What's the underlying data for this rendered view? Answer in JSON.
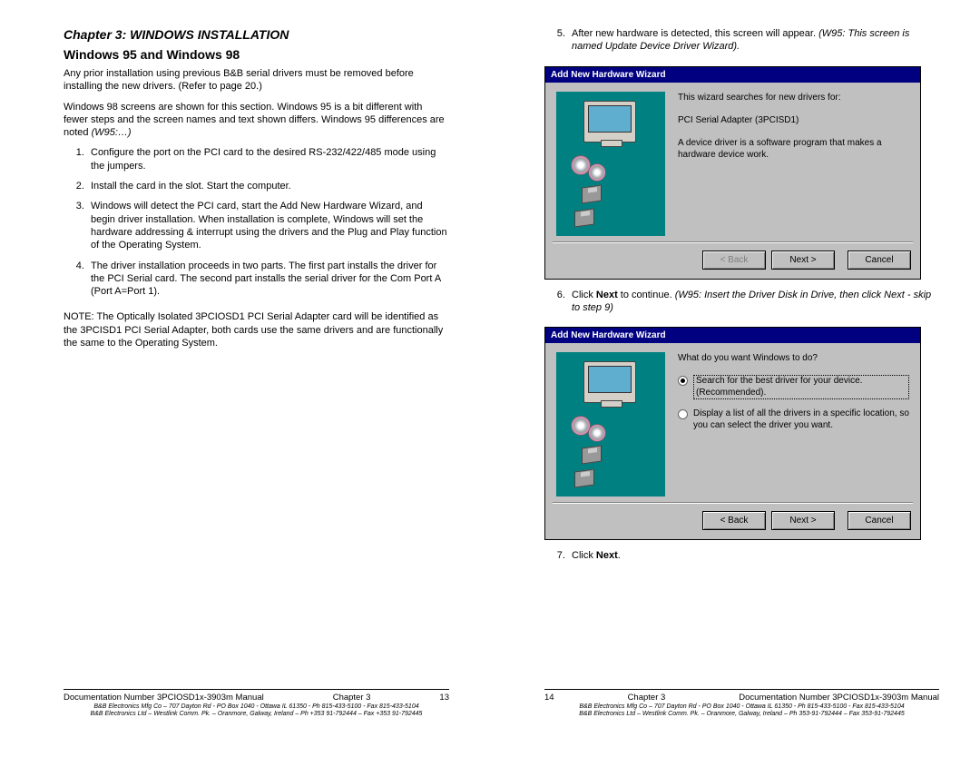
{
  "left": {
    "chapter": "Chapter 3: WINDOWS INSTALLATION",
    "heading": "Windows 95 and Windows 98",
    "p1": "Any prior installation using previous B&B serial drivers must be removed before installing the new drivers. (Refer to page 20.)",
    "p2_a": "Windows 98 screens are shown for this section. Windows 95 is a bit different with fewer steps and the screen names and text shown differs. Windows 95 differences are noted ",
    "p2_b": "(W95:…)",
    "li1": "Configure the port on the PCI card to the desired RS-232/422/485 mode using the jumpers.",
    "li2": "Install the card in the slot. Start the computer.",
    "li3": "Windows will detect the PCI card, start the Add New Hardware Wizard, and begin driver installation. When installation is complete, Windows will set the hardware addressing & interrupt using the drivers and the Plug and Play function of the Operating System.",
    "li4": "The driver installation proceeds in two parts. The first part installs the driver for the PCI Serial card. The second part installs the serial driver for the Com Port A (Port A=Port 1).",
    "note": "NOTE: The Optically Isolated 3PCIOSD1 PCI Serial Adapter card will be identified as the 3PCISD1 PCI Serial Adapter, both cards use the same drivers and are functionally the same to the Operating System.",
    "footer": {
      "doc": "Documentation Number 3PCIOSD1x-3903m Manual",
      "chap": "Chapter 3",
      "page": "13",
      "tiny1": "B&B Electronics Mfg Co – 707 Dayton Rd - PO Box 1040 - Ottawa IL 61350 - Ph 815-433-5100 - Fax 815-433-5104",
      "tiny2": "B&B Electronics Ltd – Westlink Comm. Pk. – Oranmore, Galway, Ireland – Ph +353 91-792444 – Fax +353 91-792445"
    }
  },
  "right": {
    "li5_a": "After new hardware is detected, this screen will appear. ",
    "li5_b": "(W95: This screen is named Update Device Driver Wizard).",
    "li6_a": "Click ",
    "li6_b": "Next",
    "li6_c": " to continue. ",
    "li6_d": "(W95: Insert the Driver Disk in Drive, then click Next - skip to step 9)",
    "li7_a": "Click ",
    "li7_b": "Next",
    "li7_c": ".",
    "wizard1": {
      "title": "Add New Hardware Wizard",
      "line1": "This wizard searches for new drivers for:",
      "line2": "PCI Serial Adapter (3PCISD1)",
      "line3": "A device driver is a software program that makes a hardware device work.",
      "back": "< Back",
      "next": "Next >",
      "cancel": "Cancel"
    },
    "wizard2": {
      "title": "Add New Hardware Wizard",
      "prompt": "What do you want Windows to do?",
      "opt1": "Search for the best driver for your device. (Recommended).",
      "opt2": "Display a list of all the drivers in a specific location, so you can select the driver you want.",
      "back": "< Back",
      "next": "Next >",
      "cancel": "Cancel"
    },
    "footer": {
      "page": "14",
      "chap": "Chapter 3",
      "doc": "Documentation Number 3PCIOSD1x-3903m Manual",
      "tiny1": "B&B Electronics Mfg Co – 707 Dayton Rd - PO Box 1040 - Ottawa IL 61350 - Ph 815-433-5100 - Fax 815-433-5104",
      "tiny2": "B&B Electronics Ltd – Westlink Comm. Pk. – Oranmore, Galway, Ireland – Ph 353-91-792444 – Fax 353-91-792445"
    }
  }
}
